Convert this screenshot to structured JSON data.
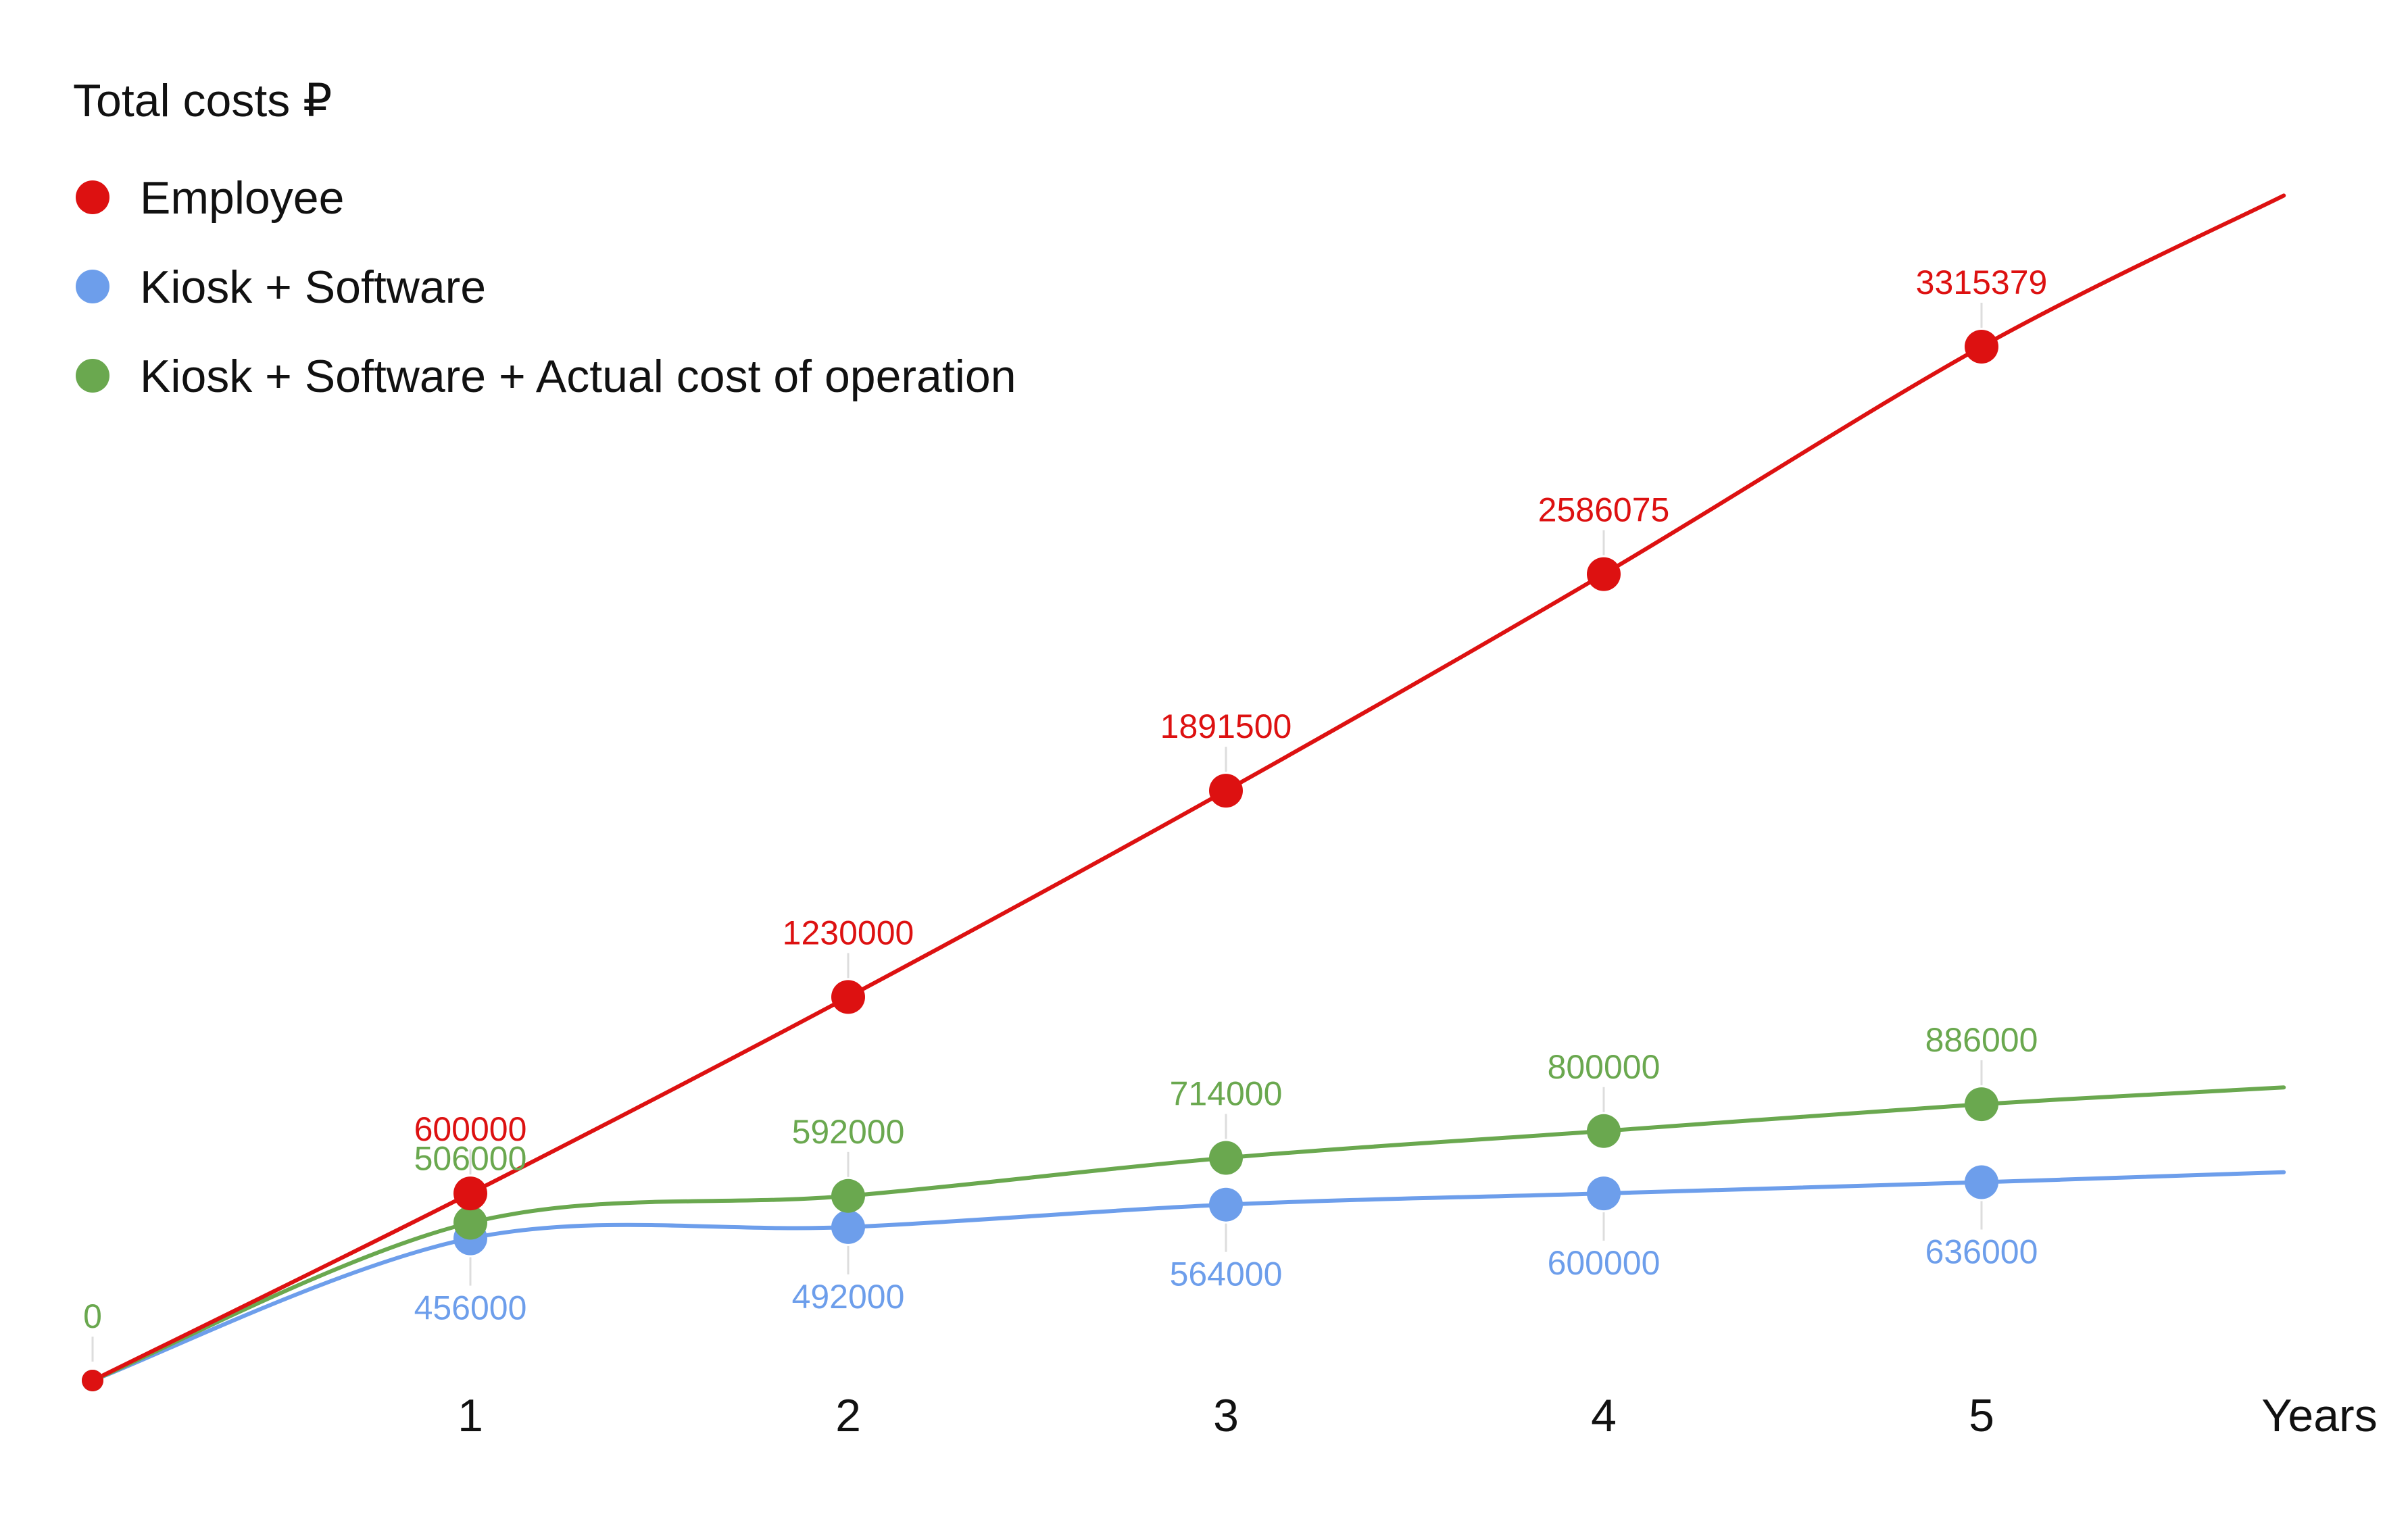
{
  "chart_data": {
    "type": "line",
    "title": "Total costs ₽",
    "xlabel": "Years",
    "ylabel": "",
    "x": [
      0,
      1,
      2,
      3,
      4,
      5
    ],
    "x_tick_labels": [
      "1",
      "2",
      "3",
      "4",
      "5"
    ],
    "x_extent": [
      0,
      5.8
    ],
    "ylim": [
      0,
      3800000
    ],
    "grid": false,
    "legend_position": "top-left",
    "series": [
      {
        "name": "Employee",
        "color": "#dd1111",
        "values": [
          0,
          600000,
          1230000,
          1891500,
          2586075,
          3315379
        ],
        "labels": [
          "",
          "600000",
          "1230000",
          "1891500",
          "2586075",
          "3315379"
        ],
        "label_position": "above",
        "line_end_value": 3800000
      },
      {
        "name": "Kiosk + Software",
        "color": "#6d9eeb",
        "values": [
          0,
          456000,
          492000,
          564000,
          600000,
          636000
        ],
        "labels": [
          "",
          "456000",
          "492000",
          "564000",
          "600000",
          "636000"
        ],
        "label_position": "below",
        "line_end_value": 668000
      },
      {
        "name": "Kiosk + Software + Actual cost of operation",
        "color": "#6aa84f",
        "values": [
          0,
          506000,
          592000,
          714000,
          800000,
          886000
        ],
        "labels": [
          "0",
          "506000",
          "592000",
          "714000",
          "800000",
          "886000"
        ],
        "label_position": "above",
        "line_end_value": 940000
      }
    ]
  }
}
